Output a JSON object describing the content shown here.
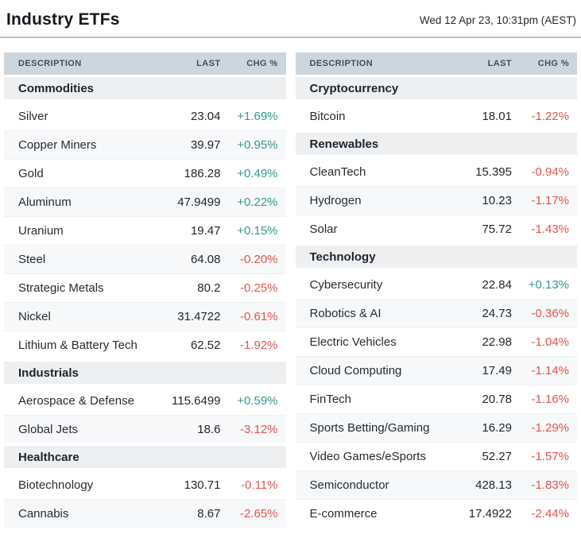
{
  "header": {
    "title": "Industry ETFs",
    "timestamp": "Wed 12 Apr 23, 10:31pm (AEST)"
  },
  "columns": {
    "description": "DESCRIPTION",
    "last": "LAST",
    "chg": "CHG %"
  },
  "colors": {
    "positive": "#2f9c8e",
    "negative": "#e2544b",
    "header_bg": "#cdd6dd",
    "section_bg": "#edeff1"
  },
  "left_table": {
    "sections": [
      {
        "name": "Commodities",
        "rows": [
          {
            "description": "Silver",
            "last": "23.04",
            "chg": "+1.69%"
          },
          {
            "description": "Copper Miners",
            "last": "39.97",
            "chg": "+0.95%"
          },
          {
            "description": "Gold",
            "last": "186.28",
            "chg": "+0.49%"
          },
          {
            "description": "Aluminum",
            "last": "47.9499",
            "chg": "+0.22%"
          },
          {
            "description": "Uranium",
            "last": "19.47",
            "chg": "+0.15%"
          },
          {
            "description": "Steel",
            "last": "64.08",
            "chg": "-0.20%"
          },
          {
            "description": "Strategic Metals",
            "last": "80.2",
            "chg": "-0.25%"
          },
          {
            "description": "Nickel",
            "last": "31.4722",
            "chg": "-0.61%"
          },
          {
            "description": "Lithium & Battery Tech",
            "last": "62.52",
            "chg": "-1.92%"
          }
        ]
      },
      {
        "name": "Industrials",
        "rows": [
          {
            "description": "Aerospace & Defense",
            "last": "115.6499",
            "chg": "+0.59%"
          },
          {
            "description": "Global Jets",
            "last": "18.6",
            "chg": "-3.12%"
          }
        ]
      },
      {
        "name": "Healthcare",
        "rows": [
          {
            "description": "Biotechnology",
            "last": "130.71",
            "chg": "-0.11%"
          },
          {
            "description": "Cannabis",
            "last": "8.67",
            "chg": "-2.65%"
          }
        ]
      }
    ]
  },
  "right_table": {
    "sections": [
      {
        "name": "Cryptocurrency",
        "rows": [
          {
            "description": "Bitcoin",
            "last": "18.01",
            "chg": "-1.22%"
          }
        ]
      },
      {
        "name": "Renewables",
        "rows": [
          {
            "description": "CleanTech",
            "last": "15.395",
            "chg": "-0.94%"
          },
          {
            "description": "Hydrogen",
            "last": "10.23",
            "chg": "-1.17%"
          },
          {
            "description": "Solar",
            "last": "75.72",
            "chg": "-1.43%"
          }
        ]
      },
      {
        "name": "Technology",
        "rows": [
          {
            "description": "Cybersecurity",
            "last": "22.84",
            "chg": "+0.13%"
          },
          {
            "description": "Robotics & AI",
            "last": "24.73",
            "chg": "-0.36%"
          },
          {
            "description": "Electric Vehicles",
            "last": "22.98",
            "chg": "-1.04%"
          },
          {
            "description": "Cloud Computing",
            "last": "17.49",
            "chg": "-1.14%"
          },
          {
            "description": "FinTech",
            "last": "20.78",
            "chg": "-1.16%"
          },
          {
            "description": "Sports Betting/Gaming",
            "last": "16.29",
            "chg": "-1.29%"
          },
          {
            "description": "Video Games/eSports",
            "last": "52.27",
            "chg": "-1.57%"
          },
          {
            "description": "Semiconductor",
            "last": "428.13",
            "chg": "-1.83%"
          },
          {
            "description": "E-commerce",
            "last": "17.4922",
            "chg": "-2.44%"
          }
        ]
      }
    ]
  }
}
